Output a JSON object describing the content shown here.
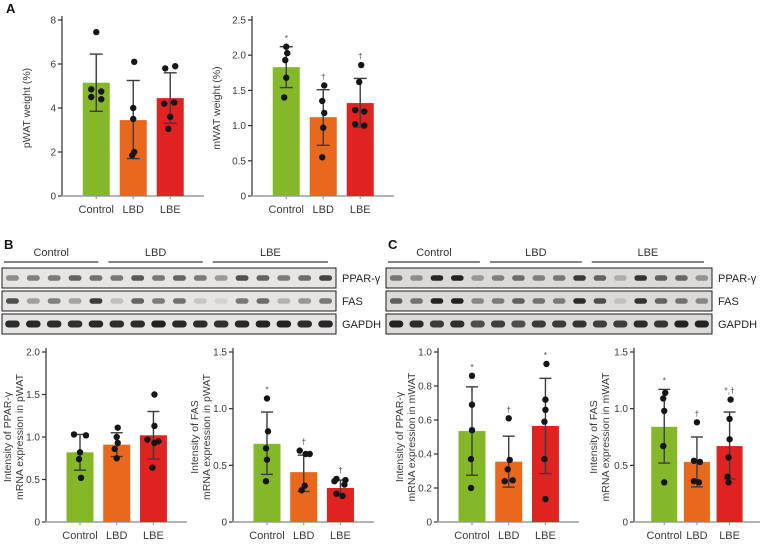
{
  "figure": {
    "panels": [
      {
        "id": "A",
        "label": "A"
      },
      {
        "id": "B",
        "label": "B"
      },
      {
        "id": "C",
        "label": "C"
      }
    ]
  },
  "colors": {
    "bar_colors": [
      "#85b829",
      "#ea671e",
      "#e02220"
    ],
    "point": "#151515",
    "error_bar": "#3c3c3c",
    "y_axis": "#2f2f2f",
    "baseline": "#9b9b9b",
    "text": "#3b3b3b",
    "annotation": "#4a4a4a",
    "blot_border": "#1c1c1c",
    "blot_bg_b": "#e6e5e3",
    "blot_bg_c": "#dbdad8",
    "band": "#141414"
  },
  "groups": [
    "Control",
    "LBD",
    "LBE"
  ],
  "blots": [
    {
      "panel": "B",
      "groups": [
        "Control",
        "LBD",
        "LBE"
      ],
      "lanes_per_group": [
        5,
        5,
        6
      ],
      "rows": [
        {
          "label": "PPAR-γ",
          "bands": [
            0.42,
            0.48,
            0.5,
            0.62,
            0.55,
            0.52,
            0.68,
            0.52,
            0.62,
            0.5,
            0.35,
            0.72,
            0.62,
            0.5,
            0.58,
            0.78
          ]
        },
        {
          "label": "FAS",
          "bands": [
            0.72,
            0.32,
            0.48,
            0.3,
            0.82,
            0.16,
            0.62,
            0.5,
            0.55,
            0.12,
            0.06,
            0.52,
            0.58,
            0.22,
            0.36,
            0.52
          ]
        },
        {
          "label": "GAPDH",
          "bands": [
            0.9,
            0.92,
            0.9,
            0.88,
            0.92,
            0.9,
            0.9,
            0.96,
            0.92,
            0.9,
            0.88,
            0.92,
            0.95,
            0.95,
            0.9,
            0.92
          ]
        }
      ]
    },
    {
      "panel": "C",
      "groups": [
        "Control",
        "LBD",
        "LBE"
      ],
      "lanes_per_group": [
        5,
        5,
        6
      ],
      "rows": [
        {
          "label": "PPAR-γ",
          "bands": [
            0.5,
            0.38,
            0.92,
            0.95,
            0.32,
            0.45,
            0.55,
            0.45,
            0.5,
            0.82,
            0.6,
            0.2,
            0.85,
            0.62,
            0.58,
            0.35
          ]
        },
        {
          "label": "FAS",
          "bands": [
            0.62,
            0.52,
            0.95,
            0.95,
            0.42,
            0.48,
            0.62,
            0.52,
            0.48,
            0.9,
            0.72,
            0.1,
            0.85,
            0.6,
            0.52,
            0.42
          ]
        },
        {
          "label": "GAPDH",
          "bands": [
            0.95,
            0.9,
            0.82,
            0.88,
            0.72,
            0.8,
            0.72,
            0.82,
            0.82,
            0.85,
            0.8,
            0.8,
            0.9,
            0.85,
            0.95,
            0.95
          ]
        }
      ]
    }
  ],
  "chart_data": [
    {
      "id": "pwat-weight-pct",
      "panel": "A",
      "type": "bar",
      "ylabel_lines": [
        "pWAT weight (%)"
      ],
      "ylim": [
        0,
        8
      ],
      "yticks": [
        {
          "v": 0,
          "label": "0"
        },
        {
          "v": 2,
          "label": "2"
        },
        {
          "v": 4,
          "label": "4"
        },
        {
          "v": 6,
          "label": "6"
        },
        {
          "v": 8,
          "label": "8"
        }
      ],
      "categories": [
        "Control",
        "LBD",
        "LBE"
      ],
      "values": [
        5.15,
        3.45,
        4.45
      ],
      "errors": [
        [
          3.85,
          6.45
        ],
        [
          1.7,
          5.25
        ],
        [
          3.3,
          5.6
        ]
      ],
      "annotations": [
        "",
        "",
        ""
      ],
      "points": [
        [
          7.45,
          4.85,
          4.75,
          4.5,
          4.4
        ],
        [
          6.1,
          4.0,
          3.5,
          2.0,
          1.85
        ],
        [
          5.9,
          5.8,
          4.25,
          4.2,
          3.6,
          3.05
        ]
      ],
      "point_dx": [
        [
          0,
          -5,
          5,
          -5,
          5
        ],
        [
          1,
          0,
          0,
          1,
          -1
        ],
        [
          5,
          -5,
          4,
          -6,
          0,
          -2
        ]
      ]
    },
    {
      "id": "mwat-weight-pct",
      "panel": "A",
      "type": "bar",
      "ylabel_lines": [
        "mWAT weight (%)"
      ],
      "ylim": [
        0,
        2.5
      ],
      "yticks": [
        {
          "v": 0,
          "label": "0"
        },
        {
          "v": 0.5,
          "label": "0.5"
        },
        {
          "v": 1.0,
          "label": "1.0"
        },
        {
          "v": 1.5,
          "label": "1.5"
        },
        {
          "v": 2.0,
          "label": "2.0"
        },
        {
          "v": 2.5,
          "label": "2.5"
        }
      ],
      "categories": [
        "Control",
        "LBD",
        "LBE"
      ],
      "values": [
        1.83,
        1.12,
        1.32
      ],
      "errors": [
        [
          1.54,
          2.12
        ],
        [
          0.72,
          1.51
        ],
        [
          0.98,
          1.67
        ]
      ],
      "annotations": [
        "*",
        "†",
        "†"
      ],
      "points": [
        [
          2.12,
          2.03,
          1.93,
          1.68,
          1.4
        ],
        [
          1.57,
          1.35,
          1.18,
          0.97,
          0.55
        ],
        [
          1.86,
          1.62,
          1.22,
          1.2,
          1.02,
          1.0
        ]
      ],
      "point_dx": [
        [
          0,
          1,
          -1,
          0,
          -2
        ],
        [
          1,
          -1,
          1,
          0,
          -1
        ],
        [
          1,
          -1,
          -5,
          4,
          -5,
          4
        ]
      ]
    },
    {
      "id": "ppar-gamma-pwat",
      "panel": "B",
      "type": "bar",
      "ylabel_lines": [
        "Intensity of PPAR-γ",
        "mRNA expression in pWAT"
      ],
      "ylim": [
        0,
        2.0
      ],
      "yticks": [
        {
          "v": 0,
          "label": "0"
        },
        {
          "v": 0.5,
          "label": "0.5"
        },
        {
          "v": 1.0,
          "label": "1.0"
        },
        {
          "v": 1.5,
          "label": "1.5"
        },
        {
          "v": 2.0,
          "label": "2.0"
        }
      ],
      "categories": [
        "Control",
        "LBD",
        "LBE"
      ],
      "values": [
        0.82,
        0.91,
        1.02
      ],
      "errors": [
        [
          0.61,
          1.03
        ],
        [
          0.77,
          1.05
        ],
        [
          0.74,
          1.3
        ]
      ],
      "annotations": [
        "",
        "",
        ""
      ],
      "points": [
        [
          1.03,
          1.02,
          0.82,
          0.74,
          0.52
        ],
        [
          1.11,
          1.0,
          0.93,
          0.86,
          0.75
        ],
        [
          1.5,
          1.13,
          0.97,
          0.95,
          0.93,
          0.64
        ]
      ],
      "point_dx": [
        [
          -6,
          6,
          0,
          -1,
          1
        ],
        [
          1,
          0,
          1,
          -2,
          0
        ],
        [
          1,
          1,
          -6,
          5,
          1,
          -1
        ]
      ]
    },
    {
      "id": "fas-pwat",
      "panel": "B",
      "type": "bar",
      "ylabel_lines": [
        "Intensity of FAS",
        "mRNA expression in pWAT"
      ],
      "ylim": [
        0,
        1.5
      ],
      "yticks": [
        {
          "v": 0,
          "label": "0"
        },
        {
          "v": 0.5,
          "label": "0.5"
        },
        {
          "v": 1.0,
          "label": "1.0"
        },
        {
          "v": 1.5,
          "label": "1.5"
        }
      ],
      "categories": [
        "Control",
        "LBD",
        "LBE"
      ],
      "values": [
        0.69,
        0.44,
        0.3
      ],
      "errors": [
        [
          0.42,
          0.97
        ],
        [
          0.27,
          0.59
        ],
        [
          0.23,
          0.37
        ]
      ],
      "annotations": [
        "*",
        "†",
        "†"
      ],
      "points": [
        [
          1.09,
          0.8,
          0.65,
          0.55,
          0.36
        ],
        [
          0.63,
          0.6,
          0.6,
          0.32,
          0.28
        ],
        [
          0.38,
          0.37,
          0.36,
          0.33,
          0.25,
          0.23
        ]
      ],
      "point_dx": [
        [
          0,
          1,
          -1,
          0,
          -1
        ],
        [
          -4,
          2,
          6,
          1,
          -2
        ],
        [
          -4,
          5,
          -6,
          4,
          -4,
          2
        ]
      ]
    },
    {
      "id": "ppar-gamma-mwat",
      "panel": "C",
      "type": "bar",
      "ylabel_lines": [
        "Intensity of PPAR-γ",
        "mRNA expression in mWAT"
      ],
      "ylim": [
        0,
        1.0
      ],
      "yticks": [
        {
          "v": 0,
          "label": "0"
        },
        {
          "v": 0.2,
          "label": "0.2"
        },
        {
          "v": 0.4,
          "label": "0.4"
        },
        {
          "v": 0.6,
          "label": "0.6"
        },
        {
          "v": 0.8,
          "label": "0.8"
        },
        {
          "v": 1.0,
          "label": "1.0"
        }
      ],
      "categories": [
        "Control",
        "LBD",
        "LBE"
      ],
      "values": [
        0.535,
        0.355,
        0.565
      ],
      "errors": [
        [
          0.275,
          0.795
        ],
        [
          0.205,
          0.505
        ],
        [
          0.285,
          0.845
        ]
      ],
      "annotations": [
        "*",
        "†",
        "*"
      ],
      "points": [
        [
          0.86,
          0.69,
          0.54,
          0.37,
          0.2
        ],
        [
          0.61,
          0.365,
          0.31,
          0.245,
          0.24
        ],
        [
          0.93,
          0.72,
          0.66,
          0.59,
          0.37,
          0.135
        ]
      ],
      "point_dx": [
        [
          0,
          0,
          0,
          -1,
          -1
        ],
        [
          0,
          1,
          -1,
          4,
          -4
        ],
        [
          1,
          0,
          0,
          -1,
          -1,
          0
        ]
      ]
    },
    {
      "id": "fas-mwat",
      "panel": "C",
      "type": "bar",
      "ylabel_lines": [
        "Intensity of FAS",
        "mRNA expression in mWAT"
      ],
      "ylim": [
        0,
        1.5
      ],
      "yticks": [
        {
          "v": 0,
          "label": "0"
        },
        {
          "v": 0.5,
          "label": "0.5"
        },
        {
          "v": 1.0,
          "label": "1.0"
        },
        {
          "v": 1.5,
          "label": "1.5"
        }
      ],
      "categories": [
        "Control",
        "LBD",
        "LBE"
      ],
      "values": [
        0.84,
        0.53,
        0.67
      ],
      "errors": [
        [
          0.52,
          1.17
        ],
        [
          0.31,
          0.75
        ],
        [
          0.38,
          0.97
        ]
      ],
      "annotations": [
        "*",
        "†",
        "*,†"
      ],
      "points": [
        [
          1.14,
          1.09,
          0.98,
          0.67,
          0.35
        ],
        [
          0.88,
          0.54,
          0.53,
          0.36,
          0.35
        ],
        [
          1.08,
          0.91,
          0.73,
          0.57,
          0.4,
          0.35
        ]
      ],
      "point_dx": [
        [
          1,
          -1,
          0,
          -1,
          0
        ],
        [
          0,
          -3,
          3,
          -3,
          2
        ],
        [
          1,
          0,
          0,
          -1,
          -2,
          -1
        ]
      ]
    }
  ]
}
